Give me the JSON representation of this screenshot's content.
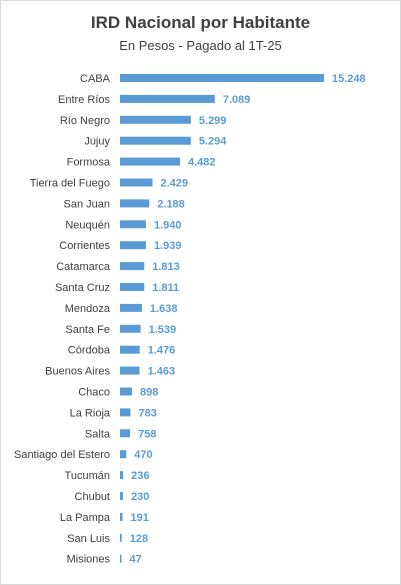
{
  "chart_data": {
    "type": "bar",
    "orientation": "horizontal",
    "title": "IRD Nacional por Habitante",
    "subtitle": "En Pesos - Pagado al 1T-25",
    "xlabel": "",
    "ylabel": "",
    "grid": false,
    "bar_color": "#5b9bd5",
    "label_color": "#5b9bd5",
    "categories": [
      "CABA",
      "Entre Ríos",
      "Río Negro",
      "Jujuy",
      "Formosa",
      "Tierra del Fuego",
      "San Juan",
      "Neuquén",
      "Corrientes",
      "Catamarca",
      "Santa Cruz",
      "Mendoza",
      "Santa Fe",
      "Córdoba",
      "Buenos Aires",
      "Chaco",
      "La Rioja",
      "Salta",
      "Santiago del Estero",
      "Tucumán",
      "Chubut",
      "La Pampa",
      "San Luis",
      "Misiones"
    ],
    "values": [
      15248,
      7089,
      5299,
      5294,
      4482,
      2429,
      2188,
      1940,
      1939,
      1813,
      1811,
      1638,
      1539,
      1476,
      1463,
      898,
      783,
      758,
      470,
      236,
      230,
      191,
      128,
      47
    ],
    "value_labels": [
      "15.248",
      "7.089",
      "5.299",
      "5.294",
      "4.482",
      "2.429",
      "2.188",
      "1.940",
      "1.939",
      "1.813",
      "1.811",
      "1.638",
      "1.539",
      "1.476",
      "1.463",
      "898",
      "783",
      "758",
      "470",
      "236",
      "230",
      "191",
      "128",
      "47"
    ]
  }
}
